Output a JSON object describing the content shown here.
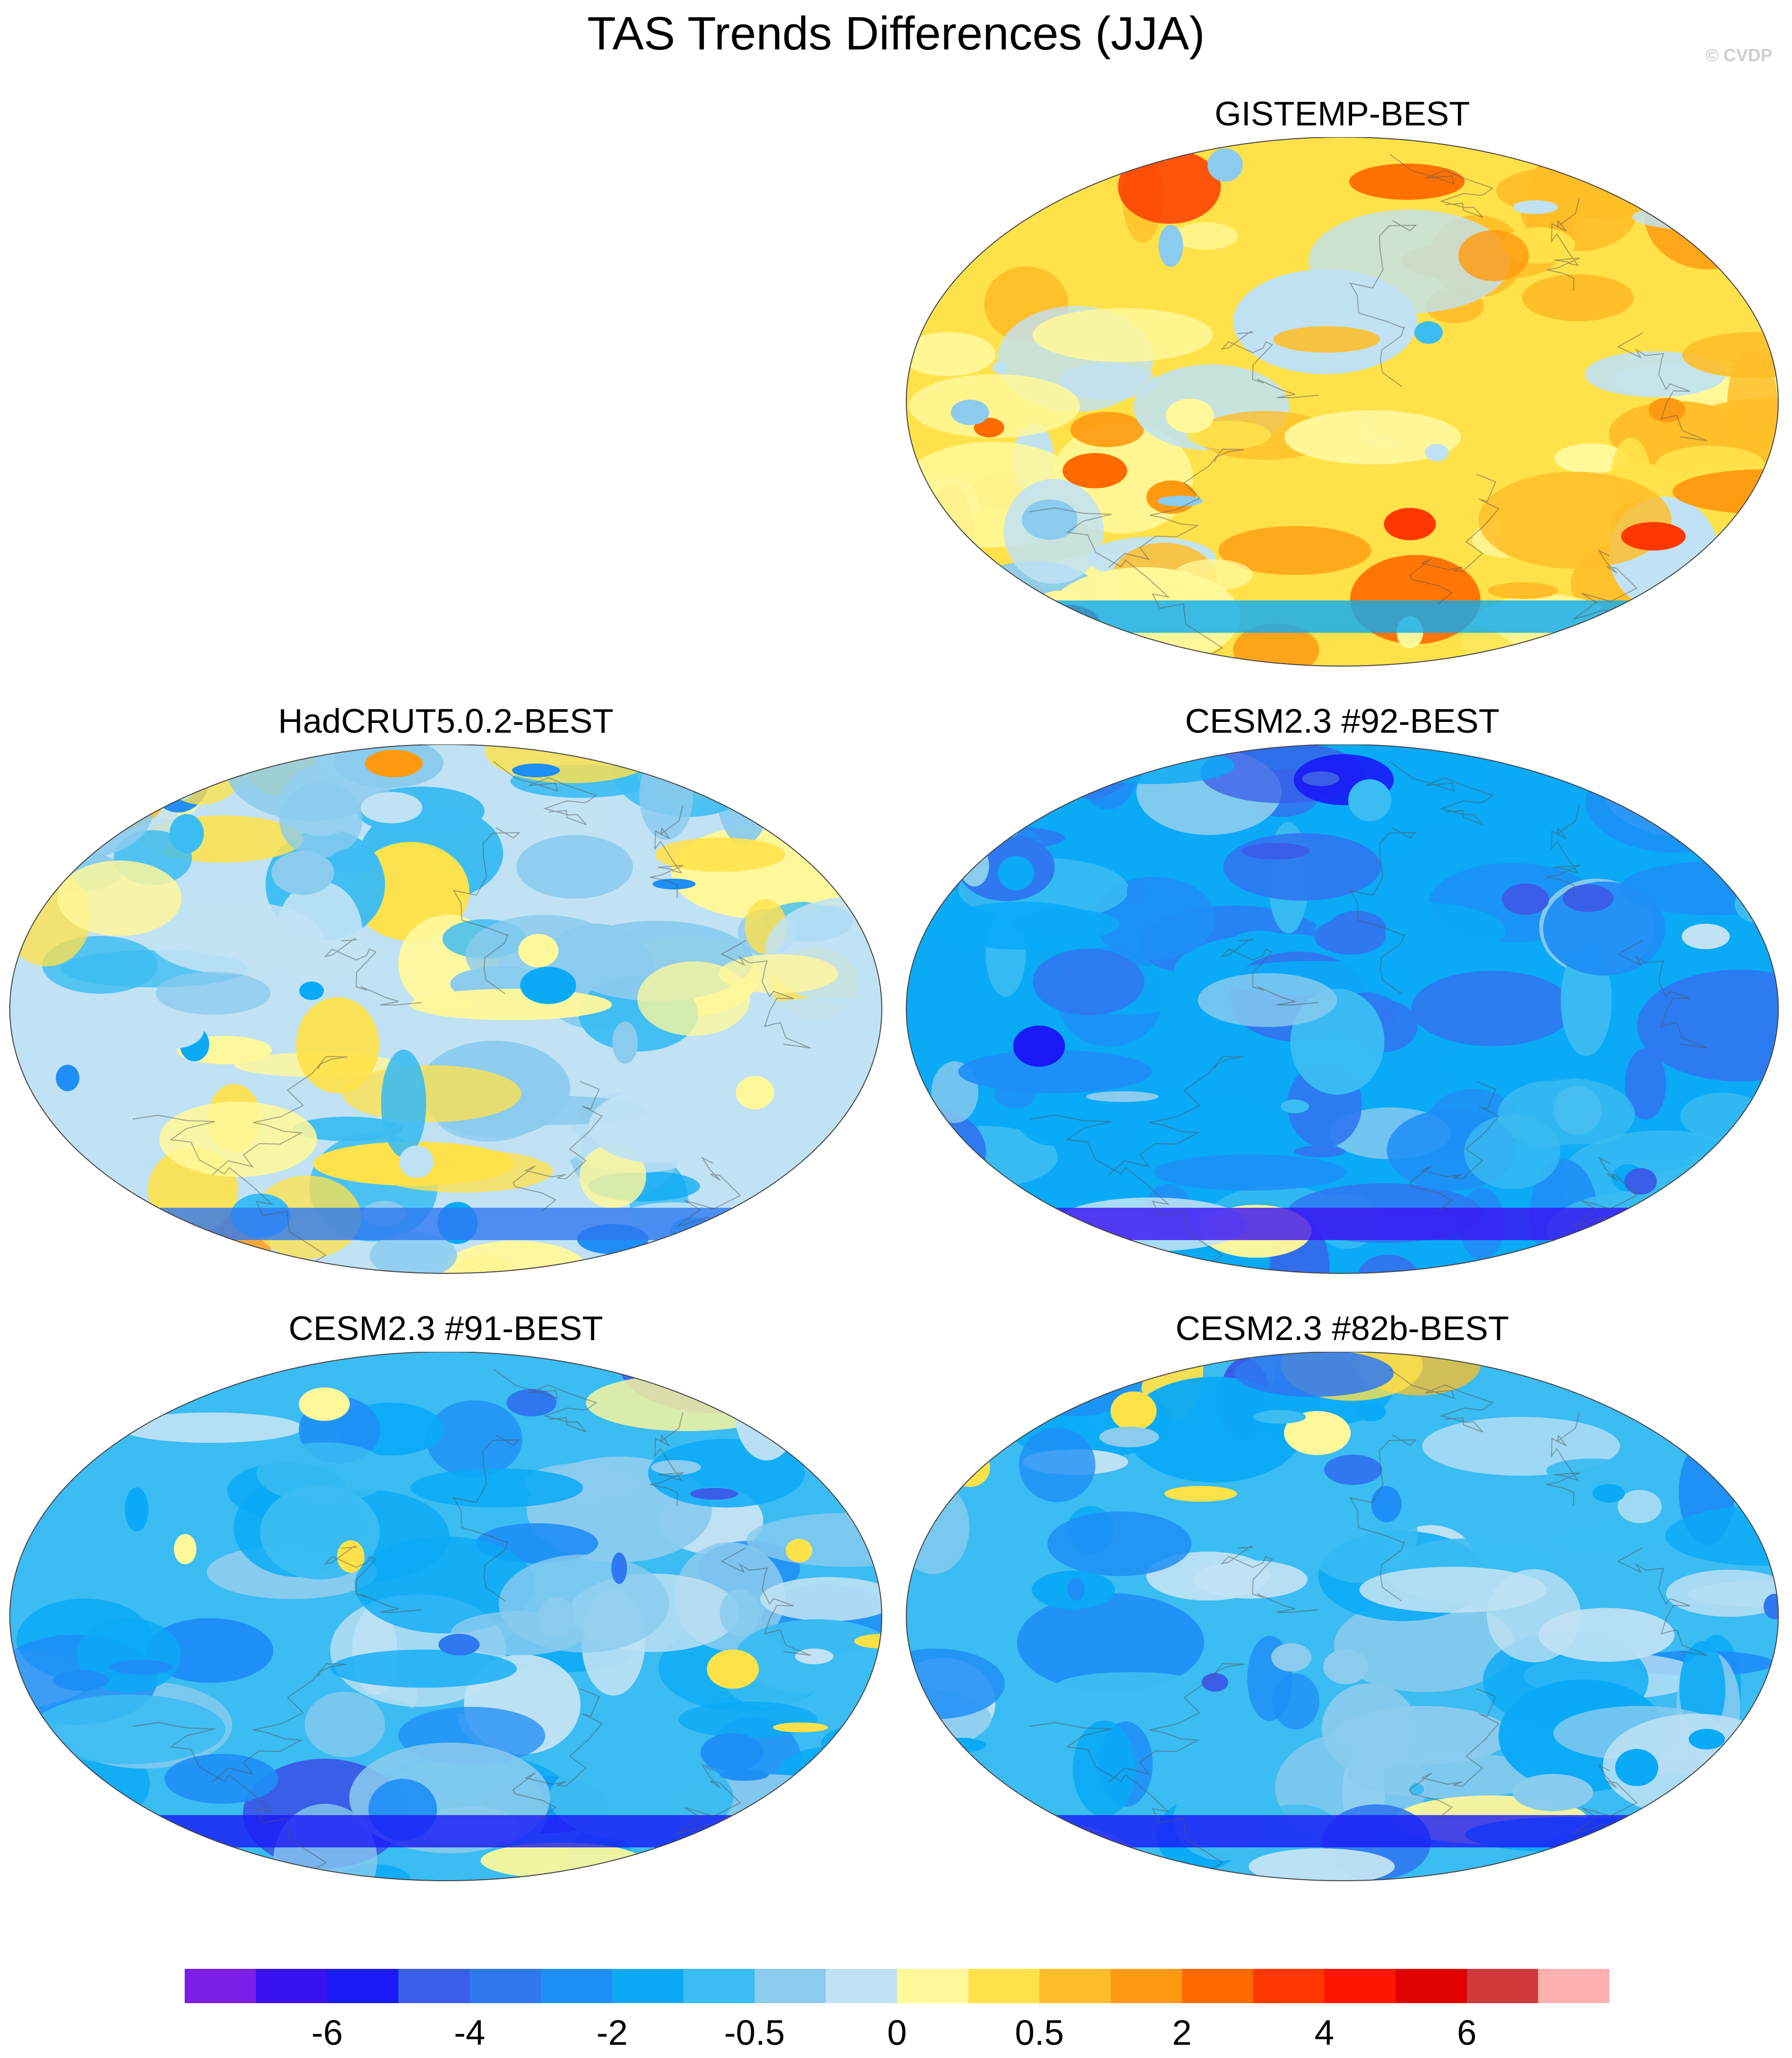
{
  "title": "TAS Trends Differences (JJA)",
  "copyright": "© CVDP",
  "panels": [
    {
      "title": "GISTEMP-BEST",
      "position": "top-right",
      "dominant": "warm",
      "palette_index_bias": 11
    },
    {
      "title": "HadCRUT5.0.2-BEST",
      "position": "middle-left",
      "dominant": "mixed",
      "palette_index_bias": 9
    },
    {
      "title": "CESM2.3 #92-BEST",
      "position": "middle-right",
      "dominant": "cool",
      "palette_index_bias": 6
    },
    {
      "title": "CESM2.3 #91-BEST",
      "position": "bottom-left",
      "dominant": "cool",
      "palette_index_bias": 7
    },
    {
      "title": "CESM2.3 #82b-BEST",
      "position": "bottom-right",
      "dominant": "cool",
      "palette_index_bias": 7
    }
  ],
  "colorbar": {
    "colors": [
      "#7b1fe8",
      "#3a12f2",
      "#1a1af6",
      "#3a5ee8",
      "#2f78f0",
      "#1f8ef6",
      "#0aaaf6",
      "#3bbcf2",
      "#8acbee",
      "#c0e2f4",
      "#fff89a",
      "#ffe24a",
      "#ffbe28",
      "#ff9a10",
      "#ff6a00",
      "#ff3800",
      "#ff1400",
      "#e00000",
      "#d03a3a",
      "#ffb0b0"
    ],
    "tick_labels": [
      "-6",
      "-4",
      "-2",
      "-0.5",
      "0",
      "0.5",
      "2",
      "4",
      "6"
    ]
  },
  "chart_data": {
    "type": "heatmap",
    "title": "TAS Trends Differences (JJA)",
    "panels": [
      "GISTEMP-BEST",
      "HadCRUT5.0.2-BEST",
      "CESM2.3 #92-BEST",
      "CESM2.3 #91-BEST",
      "CESM2.3 #82b-BEST"
    ],
    "projection": "Robinson-like ellipse",
    "colorbar_ticks": [
      -6,
      -4,
      -2,
      -0.5,
      0,
      0.5,
      2,
      4,
      6
    ]
  }
}
